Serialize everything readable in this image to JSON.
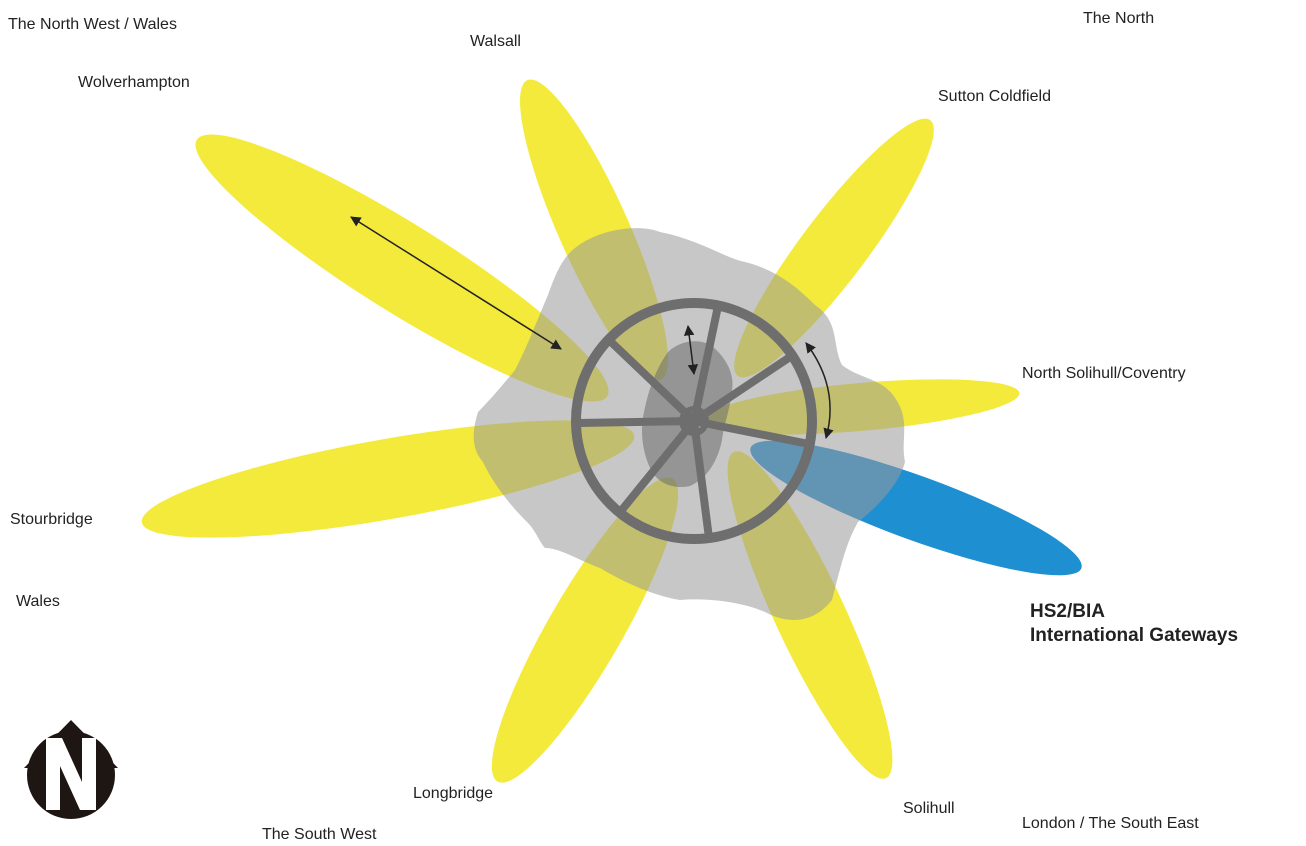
{
  "colors": {
    "corridor": "#f4ea3c",
    "gateway": "#1e90d2",
    "urban_area": "#b2b2b2",
    "core": "#8a8a8a",
    "wheel": "#6e6e6e",
    "text": "#222222"
  },
  "regions": {
    "north_west_wales": "The North West / Wales",
    "the_north": "The North",
    "wales": "Wales",
    "south_west": "The South West",
    "london_south_east": "London / The South East"
  },
  "corridors": {
    "wolverhampton": "Wolverhampton",
    "walsall": "Walsall",
    "sutton_coldfield": "Sutton Coldfield",
    "north_solihull_coventry": "North Solihull/Coventry",
    "stourbridge": "Stourbridge",
    "longbridge": "Longbridge",
    "solihull": "Solihull"
  },
  "gateway": {
    "line1": "HS2/BIA",
    "line2": "International Gateways"
  },
  "icons": {
    "north_arrow": "north-arrow-icon"
  }
}
